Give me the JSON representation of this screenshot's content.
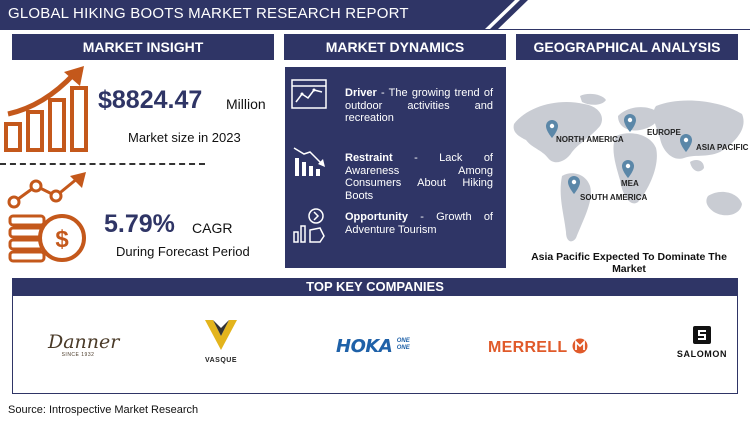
{
  "title": "GLOBAL HIKING BOOTS MARKET RESEARCH REPORT",
  "panels": {
    "insight": "MARKET INSIGHT",
    "dynamics": "MARKET DYNAMICS",
    "geo": "GEOGRAPHICAL ANALYSIS"
  },
  "insight": {
    "market_value": "$8824.47",
    "market_unit": "Million",
    "market_label": "Market size in 2023",
    "cagr_value": "5.79%",
    "cagr_unit": "CAGR",
    "cagr_label": "During Forecast Period"
  },
  "dynamics": {
    "driver_label": "Driver",
    "driver_text": " - The growing trend of outdoor activities and recreation",
    "restraint_label": "Restraint",
    "restraint_text": " - Lack of Awareness Among Consumers About Hiking Boots",
    "opportunity_label": "Opportunity",
    "opportunity_text": " - Growth of Adventure Tourism"
  },
  "geo": {
    "regions": {
      "north_america": "NORTH AMERICA",
      "europe": "EUROPE",
      "asia_pacific": "ASIA PACIFIC",
      "mea": "MEA",
      "south_america": "SOUTH AMERICA"
    },
    "caption": "Asia Pacific Expected To Dominate The Market"
  },
  "companies": {
    "heading": "TOP KEY COMPANIES",
    "danner": "Danner",
    "danner_since": "SINCE 1932",
    "vasque": "VASQUE",
    "hoka": "HOKA",
    "hoka_one": "ONE",
    "hoka_one2": "ONE",
    "merrell": "MERRELL",
    "salomon": "SALOMON"
  },
  "source": "Source: Introspective Market Research",
  "colors": {
    "navy": "#2f3566",
    "orange": "#c4581b",
    "map_grey": "#c9ccd3",
    "pin_blue": "#5b87a8"
  }
}
